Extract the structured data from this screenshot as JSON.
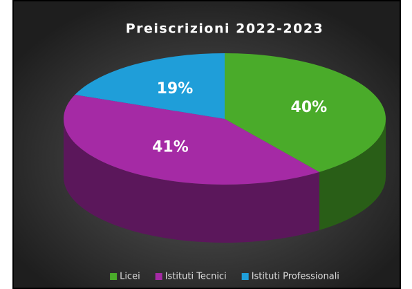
{
  "chart_data": {
    "type": "pie3d",
    "title": "Preiscrizioni 2022-2023",
    "categories": [
      "Licei",
      "Istituti Tecnici",
      "Istituti Professionali"
    ],
    "values": [
      40,
      41,
      19
    ],
    "value_labels": [
      "40%",
      "41%",
      "19%"
    ],
    "colors": [
      "#4aab2a",
      "#a52aa5",
      "#1f9ed9"
    ],
    "legend": "bottom"
  }
}
